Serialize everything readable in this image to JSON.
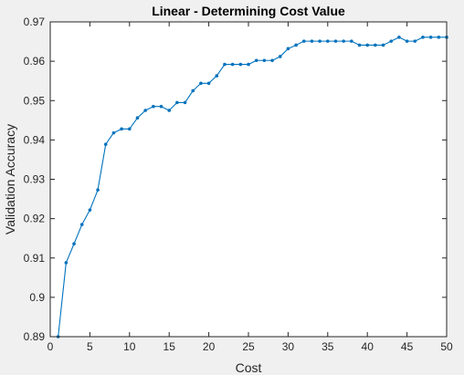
{
  "chart_data": {
    "type": "line",
    "title": "Linear - Determining Cost Value",
    "xlabel": "Cost",
    "ylabel": "Validation Accuracy",
    "xlim": [
      0,
      50
    ],
    "ylim": [
      0.89,
      0.97
    ],
    "xticks": [
      0,
      5,
      10,
      15,
      20,
      25,
      30,
      35,
      40,
      45,
      50
    ],
    "yticks": [
      0.89,
      0.9,
      0.91,
      0.92,
      0.93,
      0.94,
      0.95,
      0.96,
      0.97
    ],
    "ytick_labels": [
      "0.89",
      "0.9",
      "0.91",
      "0.92",
      "0.93",
      "0.94",
      "0.95",
      "0.96",
      "0.97"
    ],
    "grid": false,
    "line_color": "#0072bd",
    "series": [
      {
        "x": [
          1,
          2,
          3,
          4,
          5,
          6,
          7,
          8,
          9,
          10,
          11,
          12,
          13,
          14,
          15,
          16,
          17,
          18,
          19,
          20,
          21,
          22,
          23,
          24,
          25,
          26,
          27,
          28,
          29,
          30,
          31,
          32,
          33,
          34,
          35,
          36,
          37,
          38,
          39,
          40,
          41,
          42,
          43,
          44,
          45,
          46,
          47,
          48,
          49,
          50
        ],
        "values": [
          0.89,
          0.9088,
          0.9136,
          0.9185,
          0.9222,
          0.9273,
          0.9389,
          0.9418,
          0.9428,
          0.9428,
          0.9456,
          0.9475,
          0.9485,
          0.9485,
          0.9475,
          0.9495,
          0.9495,
          0.9525,
          0.9544,
          0.9544,
          0.9563,
          0.9592,
          0.9592,
          0.9592,
          0.9592,
          0.9602,
          0.9602,
          0.9602,
          0.9612,
          0.9632,
          0.9641,
          0.9651,
          0.9651,
          0.9651,
          0.9651,
          0.9651,
          0.9651,
          0.9651,
          0.9641,
          0.9641,
          0.9641,
          0.9641,
          0.9651,
          0.9661,
          0.9651,
          0.9651,
          0.9661,
          0.9661,
          0.9661,
          0.9661
        ]
      }
    ]
  }
}
